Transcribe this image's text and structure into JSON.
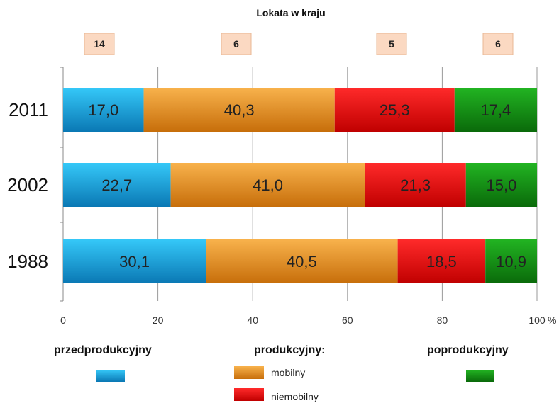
{
  "chart_data": {
    "type": "bar",
    "orientation": "horizontal",
    "stacked": true,
    "title": "Lokata w kraju",
    "categories": [
      "2011",
      "2002",
      "1988"
    ],
    "ranks": [
      "14",
      "6",
      "5",
      "6"
    ],
    "series": [
      {
        "name": "przedprodukcyjny",
        "values": [
          17.0,
          22.7,
          30.1
        ],
        "labels": [
          "17,0",
          "22,7",
          "30,1"
        ],
        "color": "#1ea9e1"
      },
      {
        "name": "mobilny",
        "values": [
          40.3,
          41.0,
          40.5
        ],
        "labels": [
          "40,3",
          "41,0",
          "40,5"
        ],
        "color": "#f0941f"
      },
      {
        "name": "niemobilny",
        "values": [
          25.3,
          21.3,
          18.5
        ],
        "labels": [
          "25,3",
          "21,3",
          "18,5"
        ],
        "color": "#ee1111"
      },
      {
        "name": "poprodukcyjny",
        "values": [
          17.4,
          15.0,
          10.9
        ],
        "labels": [
          "17,4",
          "15,0",
          "10,9"
        ],
        "color": "#129a12"
      }
    ],
    "xticks": [
      "0",
      "20",
      "40",
      "60",
      "80",
      "100"
    ],
    "xunit": "%",
    "xlim": [
      0,
      100
    ],
    "grid": true,
    "legend": {
      "group_przed": "przedprodukcyjny",
      "group_prod": "produkcyjny:",
      "group_popr": "poprodukcyjny",
      "item_mobilny": "mobilny",
      "item_niemobilny": "niemobilny"
    }
  }
}
